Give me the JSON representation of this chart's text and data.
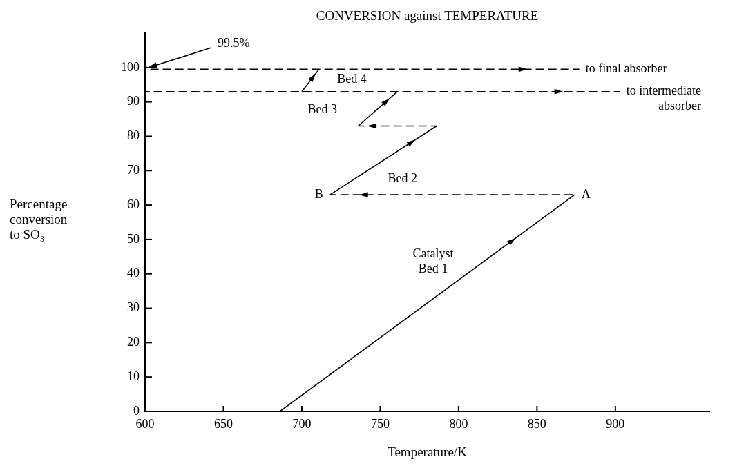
{
  "chart_data": {
    "type": "line",
    "title": "CONVERSION against TEMPERATURE",
    "xlabel": "Temperature/K",
    "ylabel": "Percentage\nconversion\nto SO₃",
    "xlim": [
      600,
      960
    ],
    "xticks": [
      600,
      650,
      700,
      750,
      800,
      850,
      900
    ],
    "ylim": [
      0,
      110
    ],
    "yticks": [
      0,
      10,
      20,
      30,
      40,
      50,
      60,
      70,
      80,
      90,
      100
    ],
    "grid": false,
    "legend": false,
    "marker": "none",
    "series": [
      {
        "color": "#000000",
        "line_style": "solid",
        "x": [
          686,
          874
        ],
        "values": [
          0,
          63
        ]
      },
      {
        "color": "#000000",
        "line_style": "dashed",
        "x": [
          874,
          718
        ],
        "values": [
          63,
          63
        ]
      },
      {
        "color": "#000000",
        "line_style": "solid",
        "x": [
          718,
          786
        ],
        "values": [
          63,
          83
        ]
      },
      {
        "color": "#000000",
        "line_style": "dashed",
        "x": [
          786,
          736
        ],
        "values": [
          83,
          83
        ]
      },
      {
        "color": "#000000",
        "line_style": "solid",
        "x": [
          736,
          761
        ],
        "values": [
          83,
          93
        ]
      },
      {
        "color": "#000000",
        "line_style": "dashed",
        "x": [
          600,
          903
        ],
        "values": [
          93,
          93
        ]
      },
      {
        "color": "#000000",
        "line_style": "solid",
        "x": [
          700,
          711
        ],
        "values": [
          93,
          99.5
        ]
      },
      {
        "color": "#000000",
        "line_style": "dashed",
        "x": [
          600,
          877
        ],
        "values": [
          99.5,
          99.5
        ]
      }
    ],
    "annotations": [
      {
        "text": "99.5%",
        "x": 600,
        "y": 99.5
      },
      {
        "text": "A",
        "x": 874,
        "y": 63
      },
      {
        "text": "B",
        "x": 718,
        "y": 63
      },
      {
        "text": "Catalyst\nBed 1",
        "x": 789,
        "y": 35
      },
      {
        "text": "Bed 2",
        "x": 740,
        "y": 70
      },
      {
        "text": "Bed 3",
        "x": 736,
        "y": 83
      },
      {
        "text": "Bed 4",
        "x": 706,
        "y": 96.5
      },
      {
        "text": "to final absorber",
        "x": 877,
        "y": 99.5
      },
      {
        "text": "to intermediate\nabsorber",
        "x": 903,
        "y": 93
      }
    ]
  }
}
